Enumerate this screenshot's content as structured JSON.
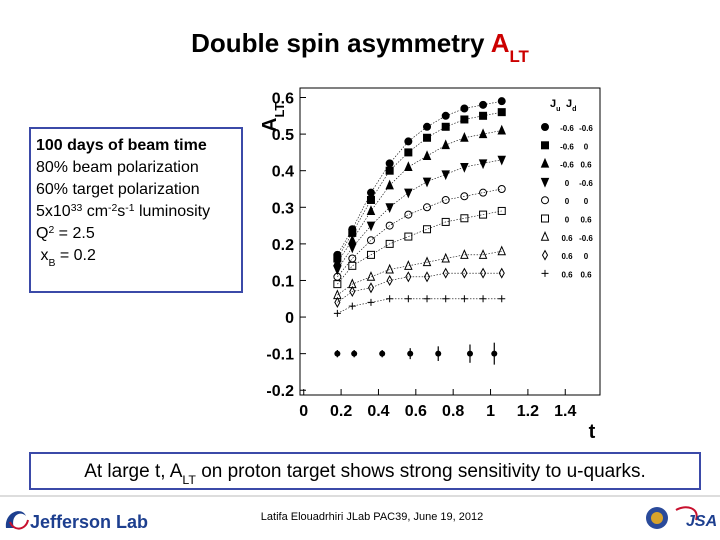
{
  "slide": {
    "title": [
      {
        "text": "Double spin asymmetry "
      },
      {
        "text": "A",
        "color": "#cc0000"
      },
      {
        "text": "LT",
        "pos": "sub",
        "color": "#cc0000"
      }
    ],
    "info_lines": [
      [
        {
          "text": "100 days of beam time",
          "bold": true
        }
      ],
      [
        {
          "text": "80% beam polarization"
        }
      ],
      [
        {
          "text": "60% target polarization"
        }
      ],
      [
        {
          "text": "5x10"
        },
        {
          "text": "33",
          "pos": "sup"
        },
        {
          "text": " cm"
        },
        {
          "text": "-2",
          "pos": "sup"
        },
        {
          "text": "s"
        },
        {
          "text": "-1",
          "pos": "sup"
        },
        {
          "text": " luminosity"
        }
      ],
      [
        {
          "text": "Q"
        },
        {
          "text": "2",
          "pos": "sup"
        },
        {
          "text": " = 2.5"
        }
      ],
      [
        {
          "text": " x"
        },
        {
          "text": "B",
          "pos": "sub"
        },
        {
          "text": " = 0.2"
        }
      ]
    ],
    "statement": [
      {
        "text": "At large t, A"
      },
      {
        "text": "LT",
        "pos": "sub"
      },
      {
        "text": " on proton target shows strong sensitivity to u-quarks."
      }
    ],
    "footer": "Latifa Elouadrhiri  JLab PAC39, June 19, 2012",
    "logos": [
      "Jefferson Lab",
      "JSA"
    ]
  },
  "chart_data": {
    "type": "line",
    "y_label": [
      {
        "text": "A"
      },
      {
        "text": "LT",
        "pos": "sub"
      }
    ],
    "x_label": "t",
    "x": [
      0.18,
      0.26,
      0.36,
      0.46,
      0.56,
      0.66,
      0.76,
      0.86,
      0.96,
      1.06
    ],
    "xlim": [
      -0.02,
      1.586
    ],
    "ylim": [
      -0.213,
      0.626
    ],
    "xticks": [
      0,
      0.2,
      0.4,
      0.6,
      0.8,
      1,
      1.2,
      1.4
    ],
    "yticks": [
      -0.2,
      -0.1,
      0,
      0.1,
      0.2,
      0.3,
      0.4,
      0.5,
      0.6
    ],
    "legend_header": [
      [
        {
          "text": "J"
        },
        {
          "text": "u",
          "pos": "sub"
        }
      ],
      [
        {
          "text": "J"
        },
        {
          "text": "d",
          "pos": "sub"
        }
      ]
    ],
    "series": [
      {
        "ju": "-0.6",
        "jd": "-0.6",
        "marker": "circle",
        "filled": true,
        "color": "#000000",
        "values": [
          0.17,
          0.24,
          0.34,
          0.42,
          0.48,
          0.52,
          0.55,
          0.57,
          0.58,
          0.59
        ]
      },
      {
        "ju": "-0.6",
        "jd": "0",
        "marker": "square",
        "filled": true,
        "color": "#000000",
        "values": [
          0.16,
          0.23,
          0.32,
          0.4,
          0.45,
          0.49,
          0.52,
          0.54,
          0.55,
          0.56
        ]
      },
      {
        "ju": "-0.6",
        "jd": "0.6",
        "marker": "triangle",
        "filled": true,
        "color": "#000000",
        "values": [
          0.15,
          0.21,
          0.29,
          0.36,
          0.41,
          0.44,
          0.47,
          0.49,
          0.5,
          0.51
        ]
      },
      {
        "ju": "0",
        "jd": "-0.6",
        "marker": "triangle-down",
        "filled": true,
        "color": "#000000",
        "values": [
          0.13,
          0.19,
          0.25,
          0.3,
          0.34,
          0.37,
          0.39,
          0.41,
          0.42,
          0.43
        ]
      },
      {
        "ju": "0",
        "jd": "0",
        "marker": "circle",
        "filled": false,
        "color": "#000000",
        "values": [
          0.11,
          0.16,
          0.21,
          0.25,
          0.28,
          0.3,
          0.32,
          0.33,
          0.34,
          0.35
        ]
      },
      {
        "ju": "0",
        "jd": "0.6",
        "marker": "square",
        "filled": false,
        "color": "#000000",
        "values": [
          0.09,
          0.14,
          0.17,
          0.2,
          0.22,
          0.24,
          0.26,
          0.27,
          0.28,
          0.29
        ]
      },
      {
        "ju": "0.6",
        "jd": "-0.6",
        "marker": "triangle",
        "filled": false,
        "color": "#000000",
        "values": [
          0.06,
          0.09,
          0.11,
          0.13,
          0.14,
          0.15,
          0.16,
          0.17,
          0.17,
          0.18
        ]
      },
      {
        "ju": "0.6",
        "jd": "0",
        "marker": "diamond",
        "filled": false,
        "color": "#000000",
        "values": [
          0.04,
          0.07,
          0.08,
          0.1,
          0.11,
          0.11,
          0.12,
          0.12,
          0.12,
          0.12
        ]
      },
      {
        "ju": "0.6",
        "jd": "0.6",
        "marker": "cross",
        "filled": false,
        "color": "#000000",
        "values": [
          0.01,
          0.03,
          0.04,
          0.05,
          0.05,
          0.05,
          0.05,
          0.05,
          0.05,
          0.05
        ]
      }
    ],
    "errors_series": {
      "x": [
        0.18,
        0.27,
        0.42,
        0.57,
        0.72,
        0.89,
        1.02
      ],
      "values": [
        -0.1,
        -0.1,
        -0.1,
        -0.1,
        -0.1,
        -0.1,
        -0.1
      ],
      "errors": [
        0.01,
        0.01,
        0.01,
        0.015,
        0.02,
        0.025,
        0.03
      ],
      "color": "#000000"
    }
  }
}
